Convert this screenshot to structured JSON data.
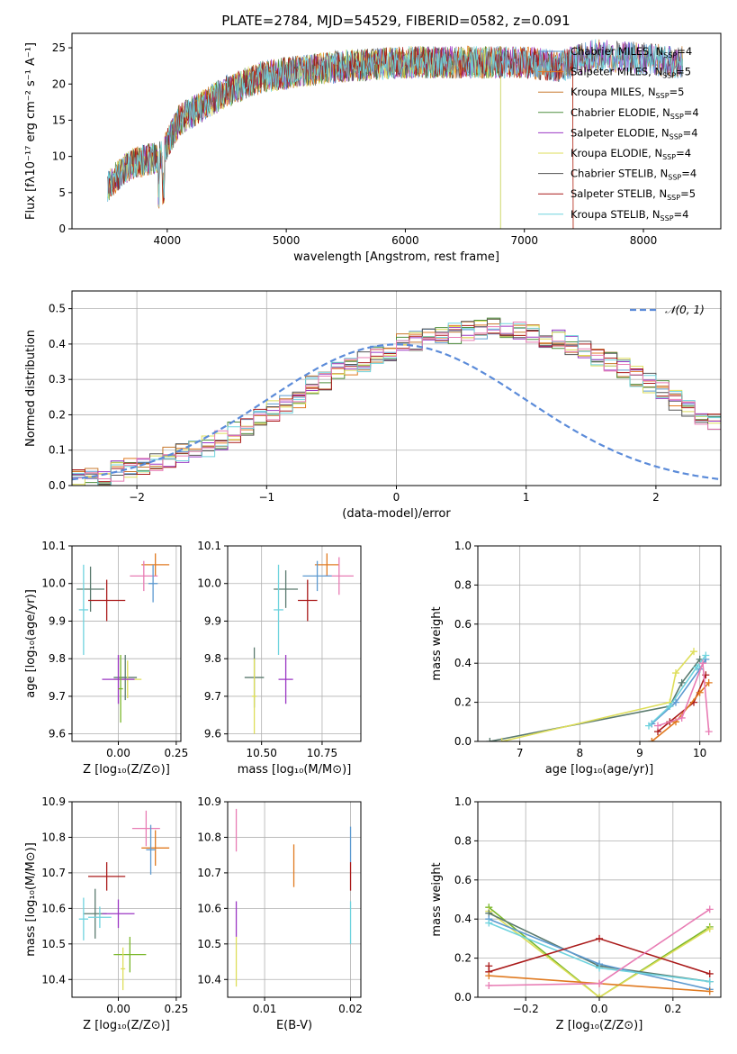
{
  "colors": {
    "blue": "#5d9ad0",
    "orange": "#e07a20",
    "brown": "#c8782d",
    "green": "#4f8f3f",
    "purple": "#9b37c4",
    "yellowgreen": "#dede5a",
    "darkgray": "#555555",
    "darkred": "#aa1a1a",
    "cyan": "#6fd3de",
    "pink": "#e87cb4",
    "olive": "#7ab72a",
    "slate": "#5a7a6e",
    "dashed": "#5b8bd9"
  },
  "chart_data": [
    {
      "type": "line",
      "title": "PLATE=2784, MJD=54529, FIBERID=0582, z=0.091",
      "xlabel": "wavelength [Angstrom, rest frame]",
      "ylabel": "Flux [fλ10⁻¹⁷ erg cm⁻² s⁻¹ A⁻¹]",
      "xlim": [
        3200,
        8650
      ],
      "ylim": [
        0,
        27
      ],
      "xticks": [
        "4000",
        "5000",
        "6000",
        "7000",
        "8000"
      ],
      "xtick_values": [
        4000,
        5000,
        6000,
        7000,
        8000
      ],
      "yticks": [
        "0",
        "5",
        "10",
        "15",
        "20",
        "25"
      ],
      "ytick_values": [
        0,
        5,
        10,
        15,
        20,
        25
      ],
      "legend": [
        {
          "label": "Chabrier MILES, N",
          "sub": "SSP",
          "tail": "=4",
          "color": "#5d9ad0"
        },
        {
          "label": "Salpeter MILES, N",
          "sub": "SSP",
          "tail": "=5",
          "color": "#e07a20"
        },
        {
          "label": "Kroupa MILES, N",
          "sub": "SSP",
          "tail": "=5",
          "color": "#c8782d"
        },
        {
          "label": "Chabrier ELODIE, N",
          "sub": "SSP",
          "tail": "=4",
          "color": "#4f8f3f"
        },
        {
          "label": "Salpeter ELODIE, N",
          "sub": "SSP",
          "tail": "=4",
          "color": "#9b37c4"
        },
        {
          "label": "Kroupa ELODIE, N",
          "sub": "SSP",
          "tail": "=4",
          "color": "#dede5a"
        },
        {
          "label": "Chabrier STELIB, N",
          "sub": "SSP",
          "tail": "=4",
          "color": "#555555"
        },
        {
          "label": "Salpeter STELIB, N",
          "sub": "SSP",
          "tail": "=5",
          "color": "#aa1a1a"
        },
        {
          "label": "Kroupa STELIB, N",
          "sub": "SSP",
          "tail": "=4",
          "color": "#6fd3de"
        }
      ],
      "continuum": [
        [
          3500,
          6
        ],
        [
          3700,
          9
        ],
        [
          3950,
          10
        ],
        [
          4100,
          15
        ],
        [
          4300,
          17
        ],
        [
          4500,
          19
        ],
        [
          4800,
          21
        ],
        [
          5000,
          21.5
        ],
        [
          5500,
          22.5
        ],
        [
          6000,
          23
        ],
        [
          6500,
          23
        ],
        [
          7000,
          23
        ],
        [
          7300,
          22.5
        ],
        [
          7600,
          24
        ],
        [
          8000,
          23.5
        ],
        [
          8300,
          23
        ]
      ],
      "drops": [
        3520,
        3920,
        6800,
        7410
      ]
    },
    {
      "type": "histogram",
      "xlabel": "(data-model)/error",
      "ylabel": "Normed distribution",
      "xlim": [
        -2.5,
        2.5
      ],
      "ylim": [
        0,
        0.55
      ],
      "xticks": [
        "−2",
        "−1",
        "0",
        "1",
        "2"
      ],
      "xtick_values": [
        -2,
        -1,
        0,
        1,
        2
      ],
      "yticks": [
        "0.0",
        "0.1",
        "0.2",
        "0.3",
        "0.4",
        "0.5"
      ],
      "ytick_values": [
        0,
        0.1,
        0.2,
        0.3,
        0.4,
        0.5
      ],
      "legend": "𝒩(0, 1)",
      "bin_width": 0.1,
      "bin_start": -2.5,
      "profile": [
        0.02,
        0.03,
        0.03,
        0.04,
        0.05,
        0.06,
        0.07,
        0.08,
        0.09,
        0.1,
        0.11,
        0.13,
        0.15,
        0.17,
        0.19,
        0.21,
        0.23,
        0.25,
        0.28,
        0.3,
        0.32,
        0.34,
        0.35,
        0.37,
        0.38,
        0.4,
        0.41,
        0.42,
        0.43,
        0.43,
        0.44,
        0.44,
        0.45,
        0.44,
        0.44,
        0.43,
        0.42,
        0.41,
        0.4,
        0.38,
        0.36,
        0.35,
        0.33,
        0.31,
        0.29,
        0.27,
        0.24,
        0.22,
        0.2,
        0.18,
        0.16,
        0.15,
        0.13,
        0.11,
        0.1,
        0.09,
        0.08,
        0.07,
        0.06,
        0.05,
        0.04,
        0.04,
        0.03,
        0.03,
        0.03,
        0.02,
        0.02,
        0.02,
        0.02,
        0.02
      ]
    },
    {
      "type": "scatter",
      "xlabel": "Z [log₁₀(Z/Z⊙)]",
      "ylabel": "age  [log₁₀(age/yr)]",
      "xlim": [
        -0.2,
        0.27
      ],
      "ylim": [
        9.58,
        10.1
      ],
      "xticks": [
        "0.00",
        "0.25"
      ],
      "xtick_values": [
        0,
        0.25
      ],
      "yticks": [
        "9.6",
        "9.7",
        "9.8",
        "9.9",
        "10.0",
        "10.1"
      ],
      "ytick_values": [
        9.6,
        9.7,
        9.8,
        9.9,
        10.0,
        10.1
      ],
      "points": [
        {
          "x": 0.16,
          "y": 10.05,
          "dx": 0.06,
          "dy": 0.03,
          "c": "orange"
        },
        {
          "x": 0.11,
          "y": 10.02,
          "dx": 0.06,
          "dy": 0.04,
          "c": "pink"
        },
        {
          "x": 0.15,
          "y": 10.0,
          "dx": 0.02,
          "dy": 0.05,
          "c": "blue"
        },
        {
          "x": -0.12,
          "y": 9.985,
          "dx": 0.06,
          "dy": 0.06,
          "c": "slate"
        },
        {
          "x": -0.15,
          "y": 9.93,
          "dx": 0.02,
          "dy": 0.12,
          "c": "cyan"
        },
        {
          "x": -0.05,
          "y": 9.955,
          "dx": 0.08,
          "dy": 0.055,
          "c": "darkred"
        },
        {
          "x": 0.03,
          "y": 9.75,
          "dx": 0.05,
          "dy": 0.06,
          "c": "slate"
        },
        {
          "x": 0.04,
          "y": 9.745,
          "dx": 0.06,
          "dy": 0.05,
          "c": "yellowgreen"
        },
        {
          "x": 0.0,
          "y": 9.745,
          "dx": 0.07,
          "dy": 0.065,
          "c": "purple"
        },
        {
          "x": 0.01,
          "y": 9.72,
          "dx": 0.01,
          "dy": 0.09,
          "c": "olive"
        }
      ]
    },
    {
      "type": "scatter",
      "xlabel": "mass [log₁₀(M/M⊙)]",
      "ylabel": "",
      "xlim": [
        10.36,
        10.91
      ],
      "ylim": [
        9.58,
        10.1
      ],
      "xticks": [
        "10.50",
        "10.75"
      ],
      "xtick_values": [
        10.5,
        10.75
      ],
      "yticks": [
        "9.6",
        "9.7",
        "9.8",
        "9.9",
        "10.0",
        "10.1"
      ],
      "ytick_values": [
        9.6,
        9.7,
        9.8,
        9.9,
        10.0,
        10.1
      ],
      "points": [
        {
          "x": 10.77,
          "y": 10.05,
          "dx": 0.05,
          "dy": 0.03,
          "c": "orange"
        },
        {
          "x": 10.82,
          "y": 10.02,
          "dx": 0.06,
          "dy": 0.05,
          "c": "pink"
        },
        {
          "x": 10.73,
          "y": 10.02,
          "dx": 0.06,
          "dy": 0.04,
          "c": "blue"
        },
        {
          "x": 10.6,
          "y": 9.985,
          "dx": 0.05,
          "dy": 0.05,
          "c": "slate"
        },
        {
          "x": 10.57,
          "y": 9.93,
          "dx": 0.02,
          "dy": 0.12,
          "c": "cyan"
        },
        {
          "x": 10.69,
          "y": 9.955,
          "dx": 0.04,
          "dy": 0.055,
          "c": "darkred"
        },
        {
          "x": 10.47,
          "y": 9.75,
          "dx": 0.04,
          "dy": 0.08,
          "c": "slate"
        },
        {
          "x": 10.47,
          "y": 9.7,
          "dx": 0.01,
          "dy": 0.1,
          "c": "yellowgreen"
        },
        {
          "x": 10.6,
          "y": 9.745,
          "dx": 0.03,
          "dy": 0.065,
          "c": "purple"
        }
      ]
    },
    {
      "type": "line",
      "xlabel": "age  [log₁₀(age/yr)]",
      "ylabel": "mass weight",
      "xlim": [
        6.3,
        10.35
      ],
      "ylim": [
        0,
        1
      ],
      "xticks": [
        "7",
        "8",
        "9",
        "10"
      ],
      "xtick_values": [
        7,
        8,
        9,
        10
      ],
      "yticks": [
        "0.0",
        "0.2",
        "0.4",
        "0.6",
        "0.8",
        "1.0"
      ],
      "ytick_values": [
        0,
        0.2,
        0.4,
        0.6,
        0.8,
        1.0
      ],
      "series": [
        {
          "c": "slate",
          "pts": [
            [
              6.5,
              0.0
            ],
            [
              9.5,
              0.18
            ],
            [
              9.7,
              0.3
            ],
            [
              10.0,
              0.42
            ]
          ]
        },
        {
          "c": "yellowgreen",
          "pts": [
            [
              6.7,
              0.0
            ],
            [
              9.5,
              0.2
            ],
            [
              9.6,
              0.35
            ],
            [
              9.9,
              0.46
            ]
          ]
        },
        {
          "c": "blue",
          "pts": [
            [
              9.2,
              0.09
            ],
            [
              9.6,
              0.2
            ],
            [
              10.0,
              0.37
            ],
            [
              10.1,
              0.42
            ]
          ]
        },
        {
          "c": "cyan",
          "pts": [
            [
              9.15,
              0.08
            ],
            [
              9.5,
              0.18
            ],
            [
              9.95,
              0.38
            ],
            [
              10.1,
              0.44
            ]
          ]
        },
        {
          "c": "darkred",
          "pts": [
            [
              9.3,
              0.05
            ],
            [
              9.5,
              0.1
            ],
            [
              9.9,
              0.2
            ],
            [
              10.1,
              0.34
            ]
          ]
        },
        {
          "c": "orange",
          "pts": [
            [
              9.2,
              0.0
            ],
            [
              9.6,
              0.1
            ],
            [
              10.0,
              0.25
            ],
            [
              10.15,
              0.3
            ]
          ]
        },
        {
          "c": "pink",
          "pts": [
            [
              9.3,
              0.08
            ],
            [
              9.7,
              0.12
            ],
            [
              10.05,
              0.4
            ],
            [
              10.15,
              0.05
            ]
          ]
        }
      ]
    },
    {
      "type": "scatter",
      "xlabel": "Z [log₁₀(Z/Z⊙)]",
      "ylabel": "mass [log₁₀(M/M⊙)]",
      "xlim": [
        -0.2,
        0.27
      ],
      "ylim": [
        10.35,
        10.9
      ],
      "xticks": [
        "0.00",
        "0.25"
      ],
      "xtick_values": [
        0,
        0.25
      ],
      "yticks": [
        "10.4",
        "10.5",
        "10.6",
        "10.7",
        "10.8",
        "10.9"
      ],
      "ytick_values": [
        10.4,
        10.5,
        10.6,
        10.7,
        10.8,
        10.9
      ],
      "points": [
        {
          "x": 0.12,
          "y": 10.825,
          "dx": 0.06,
          "dy": 0.05,
          "c": "pink"
        },
        {
          "x": 0.16,
          "y": 10.77,
          "dx": 0.06,
          "dy": 0.05,
          "c": "orange"
        },
        {
          "x": 0.14,
          "y": 10.765,
          "dx": 0.02,
          "dy": 0.07,
          "c": "blue"
        },
        {
          "x": -0.05,
          "y": 10.69,
          "dx": 0.08,
          "dy": 0.04,
          "c": "darkred"
        },
        {
          "x": -0.1,
          "y": 10.585,
          "dx": 0.05,
          "dy": 0.07,
          "c": "slate"
        },
        {
          "x": -0.15,
          "y": 10.57,
          "dx": 0.02,
          "dy": 0.06,
          "c": "cyan"
        },
        {
          "x": -0.08,
          "y": 10.575,
          "dx": 0.05,
          "dy": 0.03,
          "c": "cyan"
        },
        {
          "x": 0.0,
          "y": 10.585,
          "dx": 0.07,
          "dy": 0.04,
          "c": "purple"
        },
        {
          "x": 0.05,
          "y": 10.47,
          "dx": 0.07,
          "dy": 0.05,
          "c": "olive"
        },
        {
          "x": 0.02,
          "y": 10.43,
          "dx": 0.01,
          "dy": 0.06,
          "c": "yellowgreen"
        }
      ]
    },
    {
      "type": "scatter",
      "xlabel": "E(B-V)",
      "ylabel": "",
      "xlim": [
        0.0057,
        0.0212
      ],
      "ylim": [
        10.35,
        10.9
      ],
      "xticks": [
        "0.01",
        "0.02"
      ],
      "xtick_values": [
        0.01,
        0.02
      ],
      "yticks": [
        "10.4",
        "10.5",
        "10.6",
        "10.7",
        "10.8",
        "10.9"
      ],
      "ytick_values": [
        10.4,
        10.5,
        10.6,
        10.7,
        10.8,
        10.9
      ],
      "points": [
        {
          "x": 0.0067,
          "y": 10.82,
          "dx": 0,
          "dy": 0.06,
          "c": "pink"
        },
        {
          "x": 0.0067,
          "y": 10.57,
          "dx": 0,
          "dy": 0.05,
          "c": "purple"
        },
        {
          "x": 0.0067,
          "y": 10.45,
          "dx": 0,
          "dy": 0.07,
          "c": "yellowgreen"
        },
        {
          "x": 0.0134,
          "y": 10.72,
          "dx": 0,
          "dy": 0.06,
          "c": "orange"
        },
        {
          "x": 0.02,
          "y": 10.78,
          "dx": 0,
          "dy": 0.05,
          "c": "blue"
        },
        {
          "x": 0.02,
          "y": 10.69,
          "dx": 0,
          "dy": 0.04,
          "c": "darkred"
        },
        {
          "x": 0.02,
          "y": 10.56,
          "dx": 0,
          "dy": 0.06,
          "c": "cyan"
        }
      ]
    },
    {
      "type": "line",
      "xlabel": "Z [log₁₀(Z/Z⊙)]",
      "ylabel": "mass weight",
      "xlim": [
        -0.33,
        0.33
      ],
      "ylim": [
        0,
        1
      ],
      "xticks": [
        "−0.2",
        "0.0",
        "0.2"
      ],
      "xtick_values": [
        -0.2,
        0,
        0.2
      ],
      "yticks": [
        "0.0",
        "0.2",
        "0.4",
        "0.6",
        "0.8",
        "1.0"
      ],
      "ytick_values": [
        0,
        0.2,
        0.4,
        0.6,
        0.8,
        1.0
      ],
      "series": [
        {
          "c": "olive",
          "pts": [
            [
              -0.3,
              0.46
            ],
            [
              0.0,
              0.0
            ],
            [
              0.3,
              0.36
            ]
          ]
        },
        {
          "c": "yellowgreen",
          "pts": [
            [
              -0.3,
              0.44
            ],
            [
              0.0,
              0.0
            ],
            [
              0.3,
              0.35
            ]
          ]
        },
        {
          "c": "slate",
          "pts": [
            [
              -0.3,
              0.43
            ],
            [
              0.0,
              0.16
            ],
            [
              0.3,
              0.08
            ]
          ]
        },
        {
          "c": "blue",
          "pts": [
            [
              -0.3,
              0.4
            ],
            [
              0.0,
              0.17
            ],
            [
              0.3,
              0.04
            ]
          ]
        },
        {
          "c": "cyan",
          "pts": [
            [
              -0.3,
              0.38
            ],
            [
              0.0,
              0.15
            ],
            [
              0.3,
              0.08
            ]
          ]
        },
        {
          "c": "darkred",
          "pts": [
            [
              -0.3,
              0.16
            ],
            [
              -0.3,
              0.13
            ],
            [
              0.0,
              0.3
            ],
            [
              0.3,
              0.12
            ]
          ]
        },
        {
          "c": "orange",
          "pts": [
            [
              -0.3,
              0.11
            ],
            [
              0.0,
              0.07
            ],
            [
              0.3,
              0.03
            ]
          ]
        },
        {
          "c": "pink",
          "pts": [
            [
              -0.3,
              0.06
            ],
            [
              0.0,
              0.07
            ],
            [
              0.3,
              0.45
            ]
          ]
        }
      ]
    }
  ]
}
